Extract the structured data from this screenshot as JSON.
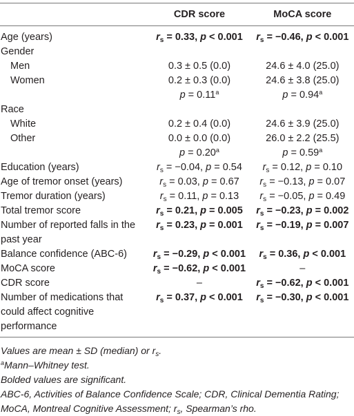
{
  "table": {
    "header": [
      "CDR score",
      "MoCA score"
    ],
    "rows": [
      {
        "label": "Age (years)",
        "cells": [
          {
            "bold": true,
            "runs": [
              {
                "text": "r",
                "fmt": "i"
              },
              {
                "text": "s",
                "fmt": "sub"
              },
              " = 0.33, ",
              {
                "text": "p",
                "fmt": "i"
              },
              " < 0.001"
            ]
          },
          {
            "bold": true,
            "runs": [
              {
                "text": "r",
                "fmt": "i"
              },
              {
                "text": "s",
                "fmt": "sub"
              },
              " = −0.46, ",
              {
                "text": "p",
                "fmt": "i"
              },
              " < 0.001"
            ]
          }
        ]
      },
      {
        "label": "Gender",
        "cells": []
      },
      {
        "label": "Men",
        "indent": true,
        "cells": [
          {
            "runs": [
              "0.3 ± 0.5 (0.0)"
            ]
          },
          {
            "runs": [
              "24.6 ± 4.0 (25.0)"
            ]
          }
        ]
      },
      {
        "label": "Women",
        "indent": true,
        "cells": [
          {
            "runs": [
              "0.2 ± 0.3 (0.0)"
            ]
          },
          {
            "runs": [
              "24.6 ± 3.8 (25.0)"
            ]
          }
        ]
      },
      {
        "label": null,
        "cells": [
          {
            "runs": [
              {
                "text": "p",
                "fmt": "i"
              },
              " = 0.11",
              {
                "text": "a",
                "fmt": "sup"
              }
            ]
          },
          {
            "runs": [
              {
                "text": "p",
                "fmt": "i"
              },
              " = 0.94",
              {
                "text": "a",
                "fmt": "sup"
              }
            ]
          }
        ]
      },
      {
        "label": "Race",
        "cells": []
      },
      {
        "label": "White",
        "indent": true,
        "cells": [
          {
            "runs": [
              "0.2 ± 0.4 (0.0)"
            ]
          },
          {
            "runs": [
              "24.6 ± 3.9 (25.0)"
            ]
          }
        ]
      },
      {
        "label": "Other",
        "indent": true,
        "cells": [
          {
            "runs": [
              "0.0 ± 0.0 (0.0)"
            ]
          },
          {
            "runs": [
              "26.0 ± 2.2 (25.5)"
            ]
          }
        ]
      },
      {
        "label": null,
        "cells": [
          {
            "runs": [
              {
                "text": "p",
                "fmt": "i"
              },
              " = 0.20",
              {
                "text": "a",
                "fmt": "sup"
              }
            ]
          },
          {
            "runs": [
              {
                "text": "p",
                "fmt": "i"
              },
              " = 0.59",
              {
                "text": "a",
                "fmt": "sup"
              }
            ]
          }
        ]
      },
      {
        "label": "Education (years)",
        "cells": [
          {
            "runs": [
              {
                "text": "r",
                "fmt": "i"
              },
              {
                "text": "s",
                "fmt": "sub"
              },
              " = −0.04, ",
              {
                "text": "p",
                "fmt": "i"
              },
              " = 0.54"
            ]
          },
          {
            "runs": [
              {
                "text": "r",
                "fmt": "i"
              },
              {
                "text": "s",
                "fmt": "sub"
              },
              " = 0.12, ",
              {
                "text": "p",
                "fmt": "i"
              },
              " = 0.10"
            ]
          }
        ]
      },
      {
        "label": "Age of tremor onset (years)",
        "cells": [
          {
            "runs": [
              {
                "text": "r",
                "fmt": "i"
              },
              {
                "text": "s",
                "fmt": "sub"
              },
              " = 0.03, ",
              {
                "text": "p",
                "fmt": "i"
              },
              " = 0.67"
            ]
          },
          {
            "runs": [
              {
                "text": "r",
                "fmt": "i"
              },
              {
                "text": "s",
                "fmt": "sub"
              },
              " = −0.13, ",
              {
                "text": "p",
                "fmt": "i"
              },
              " = 0.07"
            ]
          }
        ]
      },
      {
        "label": "Tremor duration (years)",
        "cells": [
          {
            "runs": [
              {
                "text": "r",
                "fmt": "i"
              },
              {
                "text": "s",
                "fmt": "sub"
              },
              " = 0.11, ",
              {
                "text": "p",
                "fmt": "i"
              },
              " = 0.13"
            ]
          },
          {
            "runs": [
              {
                "text": "r",
                "fmt": "i"
              },
              {
                "text": "s",
                "fmt": "sub"
              },
              " = −0.05, ",
              {
                "text": "p",
                "fmt": "i"
              },
              " = 0.49"
            ]
          }
        ]
      },
      {
        "label": "Total tremor score",
        "cells": [
          {
            "bold": true,
            "runs": [
              {
                "text": "r",
                "fmt": "i"
              },
              {
                "text": "s",
                "fmt": "sub"
              },
              " = 0.21, ",
              {
                "text": "p",
                "fmt": "i"
              },
              " = 0.005"
            ]
          },
          {
            "bold": true,
            "runs": [
              {
                "text": "r",
                "fmt": "i"
              },
              {
                "text": "s",
                "fmt": "sub"
              },
              " = −0.23, ",
              {
                "text": "p",
                "fmt": "i"
              },
              " = 0.002"
            ]
          }
        ]
      },
      {
        "label": "Number of reported falls in the past year",
        "cells": [
          {
            "bold": true,
            "runs": [
              {
                "text": "r",
                "fmt": "i"
              },
              {
                "text": "s",
                "fmt": "sub"
              },
              " = 0.23, ",
              {
                "text": "p",
                "fmt": "i"
              },
              " = 0.001"
            ]
          },
          {
            "bold": true,
            "runs": [
              {
                "text": "r",
                "fmt": "i"
              },
              {
                "text": "s",
                "fmt": "sub"
              },
              " = −0.19, ",
              {
                "text": "p",
                "fmt": "i"
              },
              " = 0.007"
            ]
          }
        ]
      },
      {
        "label": "Balance confidence (ABC-6)",
        "cells": [
          {
            "bold": true,
            "runs": [
              {
                "text": "r",
                "fmt": "i"
              },
              {
                "text": "s",
                "fmt": "sub"
              },
              " = −0.29, ",
              {
                "text": "p",
                "fmt": "i"
              },
              " < 0.001"
            ]
          },
          {
            "bold": true,
            "runs": [
              {
                "text": "r",
                "fmt": "i"
              },
              {
                "text": "s",
                "fmt": "sub"
              },
              " = 0.36, ",
              {
                "text": "p",
                "fmt": "i"
              },
              " < 0.001"
            ]
          }
        ]
      },
      {
        "label": "MoCA score",
        "cells": [
          {
            "bold": true,
            "runs": [
              {
                "text": "r",
                "fmt": "i"
              },
              {
                "text": "s",
                "fmt": "sub"
              },
              " = −0.62, ",
              {
                "text": "p",
                "fmt": "i"
              },
              " < 0.001"
            ]
          },
          {
            "runs": [
              "–"
            ]
          }
        ]
      },
      {
        "label": "CDR score",
        "cells": [
          {
            "runs": [
              "–"
            ]
          },
          {
            "bold": true,
            "runs": [
              {
                "text": "r",
                "fmt": "i"
              },
              {
                "text": "s",
                "fmt": "sub"
              },
              " = −0.62, ",
              {
                "text": "p",
                "fmt": "i"
              },
              " < 0.001"
            ]
          }
        ]
      },
      {
        "label": "Number of medications that could affect cognitive performance",
        "cells": [
          {
            "bold": true,
            "runs": [
              {
                "text": "r",
                "fmt": "i"
              },
              {
                "text": "s",
                "fmt": "sub"
              },
              " = 0.37, ",
              {
                "text": "p",
                "fmt": "i"
              },
              " < 0.001"
            ]
          },
          {
            "bold": true,
            "runs": [
              {
                "text": "r",
                "fmt": "i"
              },
              {
                "text": "s",
                "fmt": "sub"
              },
              " = −0.30, ",
              {
                "text": "p",
                "fmt": "i"
              },
              " < 0.001"
            ]
          }
        ]
      }
    ]
  },
  "footnotes": [
    [
      "Values are mean ± SD (median) or r",
      {
        "text": "s",
        "fmt": "sub"
      },
      "."
    ],
    [
      {
        "text": "a",
        "fmt": "sup"
      },
      "Mann–Whitney test."
    ],
    [
      "Bolded values are significant."
    ],
    [
      "ABC-6, Activities of Balance Confidence Scale; CDR, Clinical Dementia Rating; MoCA, Montreal Cognitive Assessment; r",
      {
        "text": "s",
        "fmt": "sub"
      },
      ", Spearman’s rho."
    ]
  ]
}
